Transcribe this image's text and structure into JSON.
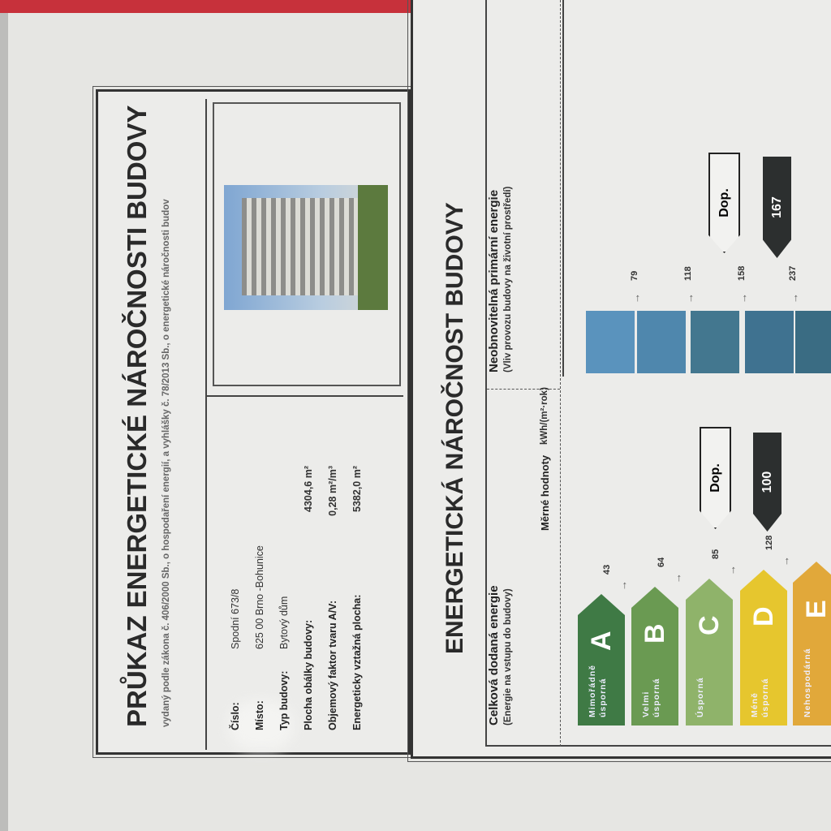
{
  "header": {
    "title": "PRŮKAZ ENERGETICKÉ NÁROČNOSTI BUDOVY",
    "subtitle": "vydaný podle zákona č. 406/2000 Sb., o hospodaření energií, a vyhlášky č. 78/2013 Sb., o energetické náročnosti budov"
  },
  "building": {
    "rows": [
      {
        "label": "Číslo:",
        "value": "Spodní 673/8"
      },
      {
        "label": "Místo:",
        "value": "625 00  Brno -Bohunice"
      },
      {
        "label": "Typ budovy:",
        "value": "Bytový dům"
      },
      {
        "label": "Plocha obálky budovy:",
        "value": "4304,6 m²"
      },
      {
        "label": "Objemový faktor tvaru A/V:",
        "value": "0,28 m²/m³"
      },
      {
        "label": "Energeticky vztažná plocha:",
        "value": "5382,0 m²"
      }
    ],
    "photo": "apartment-building-photo"
  },
  "rating": {
    "heading": "ENERGETICKÁ NÁROČNOST BUDOVY",
    "units_label": "Měrné hodnoty",
    "units": "kWh/(m²·rok)",
    "delivered": {
      "title": "Celková dodaná energie",
      "subtitle": "(Energie na vstupu do budovy)",
      "classes": [
        {
          "letter": "A",
          "name": "Mimořádně úsporná",
          "color": "#3f7a45"
        },
        {
          "letter": "B",
          "name": "Velmi úsporná",
          "color": "#6a9a52"
        },
        {
          "letter": "C",
          "name": "Úsporná",
          "color": "#8fb36a"
        },
        {
          "letter": "D",
          "name": "Méně úsporná",
          "color": "#e6c62e"
        },
        {
          "letter": "E",
          "name": "Nehospodárná",
          "color": "#e1a83a"
        }
      ],
      "thresholds": [
        "43",
        "64",
        "85",
        "128"
      ],
      "reference_label": "Dop.",
      "value": "100"
    },
    "primary": {
      "title": "Neobnovitelná primární energie",
      "subtitle": "(Vliv provozu budovy na životní prostředí)",
      "bar_colors": [
        "#5a93bd",
        "#4f87ad",
        "#43778f",
        "#3f7290",
        "#3a6c83"
      ],
      "thresholds": [
        "79",
        "118",
        "158",
        "237"
      ],
      "reference_label": "Dop.",
      "value": "167"
    }
  }
}
